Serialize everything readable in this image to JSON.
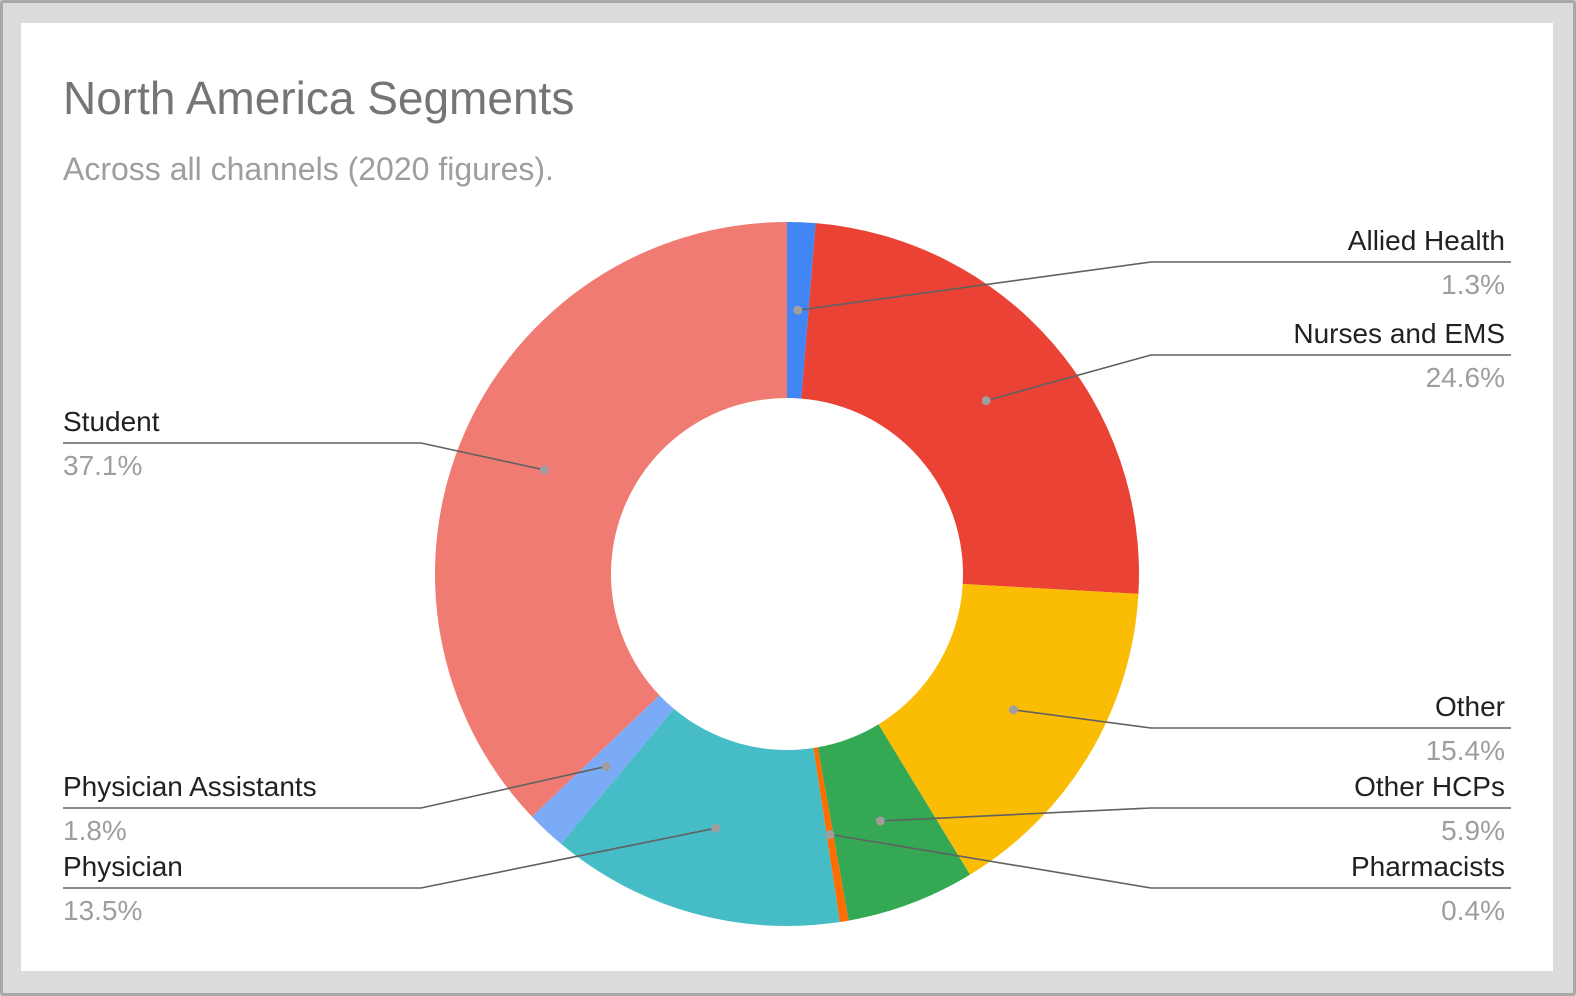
{
  "chart_data": {
    "type": "pie",
    "title": "North America Segments",
    "subtitle": "Across all channels (2020 figures).",
    "donut": true,
    "slices": [
      {
        "label": "Allied Health",
        "value": 1.3,
        "display": "1.3%",
        "color": "#4285f4"
      },
      {
        "label": "Nurses and EMS",
        "value": 24.6,
        "display": "24.6%",
        "color": "#ea4335"
      },
      {
        "label": "Other",
        "value": 15.4,
        "display": "15.4%",
        "color": "#fbbc04"
      },
      {
        "label": "Other HCPs",
        "value": 5.9,
        "display": "5.9%",
        "color": "#34a853"
      },
      {
        "label": "Pharmacists",
        "value": 0.4,
        "display": "0.4%",
        "color": "#ff6d01"
      },
      {
        "label": "Physician",
        "value": 13.5,
        "display": "13.5%",
        "color": "#46bdc6"
      },
      {
        "label": "Physician Assistants",
        "value": 1.8,
        "display": "1.8%",
        "color": "#7baaf7"
      },
      {
        "label": "Student",
        "value": 37.1,
        "display": "37.1%",
        "color": "#f07b72"
      }
    ]
  }
}
